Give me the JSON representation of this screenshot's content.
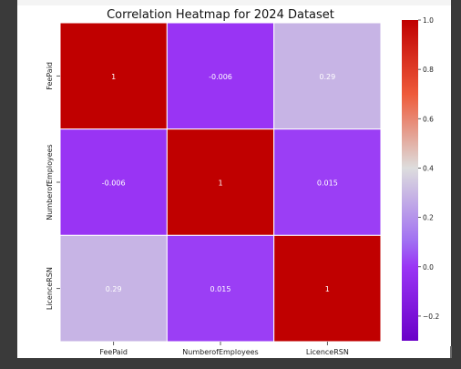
{
  "chart_data": {
    "type": "heatmap",
    "title": "Correlation Heatmap for 2024 Dataset",
    "x_labels": [
      "FeePaid",
      "NumberofEmployees",
      "LicenceRSN"
    ],
    "y_labels": [
      "FeePaid",
      "NumberofEmployees",
      "LicenceRSN"
    ],
    "values": [
      [
        1,
        -0.006,
        0.29
      ],
      [
        -0.006,
        1,
        0.015
      ],
      [
        0.29,
        0.015,
        1
      ]
    ],
    "cell_labels": [
      [
        "1",
        "-0.006",
        "0.29"
      ],
      [
        "-0.006",
        "1",
        "0.015"
      ],
      [
        "0.29",
        "0.015",
        "1"
      ]
    ],
    "colorbar": {
      "vmin": -0.3,
      "vmax": 1.0,
      "ticks": [
        1.0,
        0.8,
        0.6,
        0.4,
        0.2,
        0.0,
        -0.2
      ],
      "tick_labels": [
        "1.0",
        "0.8",
        "0.6",
        "0.4",
        "0.2",
        "0.0",
        "−0.2"
      ],
      "colormap_stops": [
        {
          "value": -0.3,
          "color": "#6a00c8"
        },
        {
          "value": 0.0,
          "color": "#9a35f5"
        },
        {
          "value": 0.1,
          "color": "#a06ef2"
        },
        {
          "value": 0.4,
          "color": "#dddddd"
        },
        {
          "value": 0.7,
          "color": "#ee5a3a"
        },
        {
          "value": 1.0,
          "color": "#c00000"
        }
      ]
    },
    "xlabel": "",
    "ylabel": ""
  }
}
